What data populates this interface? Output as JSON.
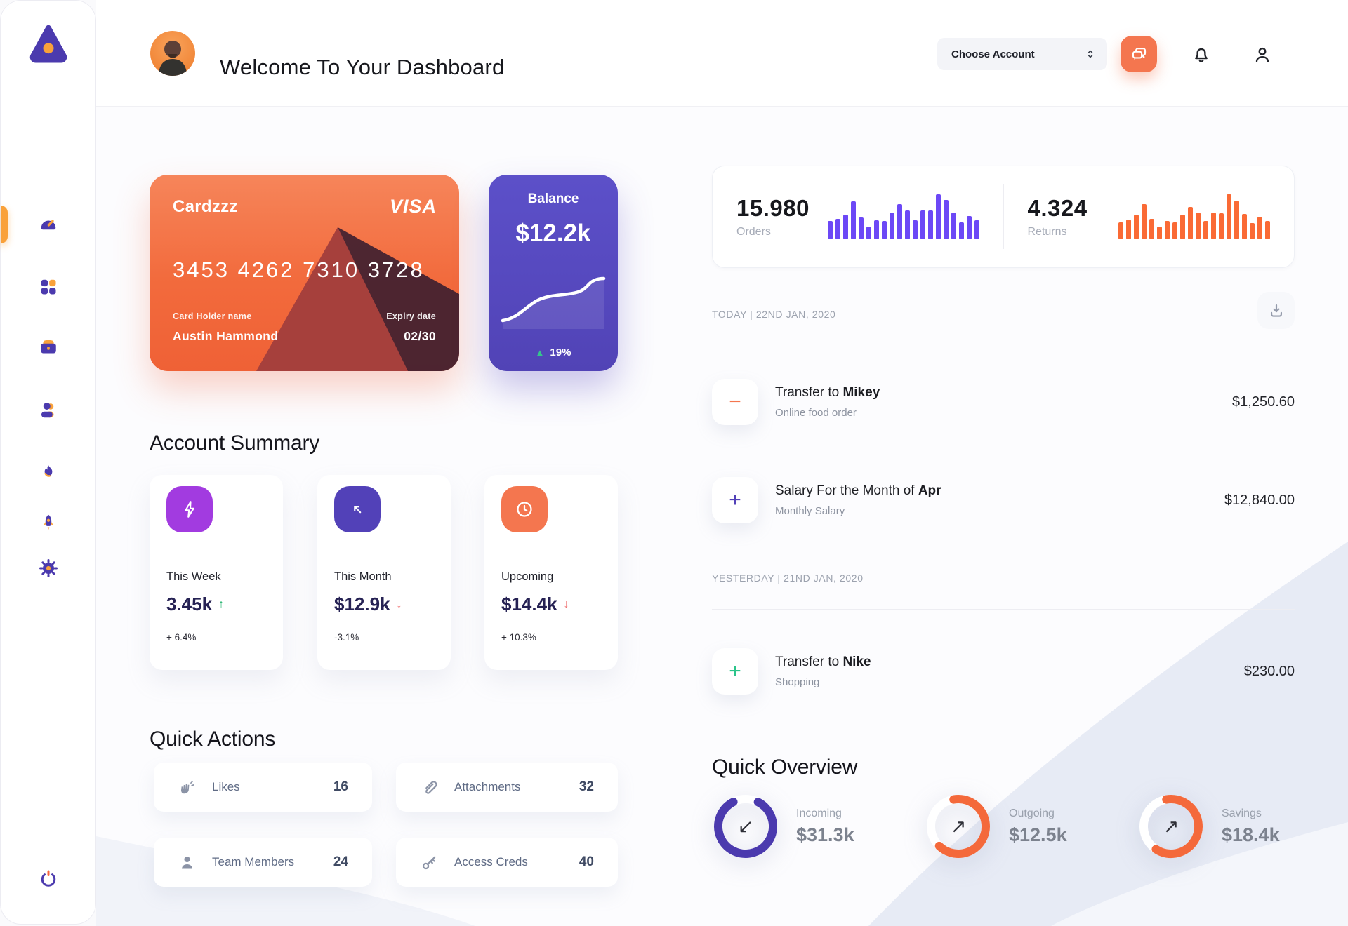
{
  "sidebar": {
    "active_item": "dashboard",
    "items": [
      "dashboard",
      "apps",
      "portfolio",
      "contacts",
      "activity",
      "launch",
      "settings"
    ]
  },
  "header": {
    "title": "Welcome To Your Dashboard",
    "account_select": {
      "label": "Choose Account"
    }
  },
  "wallet_card": {
    "name": "Cardzzz",
    "brand": "VISA",
    "number": "3453 4262 7310 3728",
    "holder_label": "Card Holder name",
    "holder_name": "Austin Hammond",
    "expiry_label": "Expiry date",
    "expiry": "02/30"
  },
  "balance_card": {
    "label": "Balance",
    "value": "$12.2k",
    "change_icon": "▲",
    "change": "19%",
    "change_color": "#35C48D"
  },
  "stats": {
    "orders": {
      "value": "15.980",
      "label": "Orders",
      "color": "#6C48F6",
      "values": [
        40,
        45,
        55,
        85,
        48,
        28,
        42,
        40,
        60,
        78,
        64,
        42,
        64,
        64,
        100,
        88,
        60,
        38,
        52,
        42
      ]
    },
    "returns": {
      "value": "4.324",
      "label": "Returns",
      "color": "#FA6A35",
      "values": [
        38,
        44,
        54,
        78,
        46,
        28,
        40,
        38,
        54,
        72,
        60,
        40,
        60,
        58,
        100,
        86,
        56,
        36,
        50,
        40
      ]
    }
  },
  "account_summary": {
    "title": "Account Summary",
    "cards": [
      {
        "icon": "lightning-icon",
        "icon_bg": "#A23BE0",
        "label": "This Week",
        "value": "3.45k",
        "trend_icon": "↑",
        "trend_color": "#2BB673",
        "change": "+ 6.4%"
      },
      {
        "icon": "arrow-up-left-icon",
        "icon_bg": "#5241B8",
        "label": "This Month",
        "value": "$12.9k",
        "trend_icon": "↓",
        "trend_color": "#F07373",
        "change": "-3.1%"
      },
      {
        "icon": "clock-icon",
        "icon_bg": "#F4764F",
        "label": "Upcoming",
        "value": "$14.4k",
        "trend_icon": "↓",
        "trend_color": "#F07373",
        "change": "+ 10.3%"
      }
    ]
  },
  "quick_actions": {
    "title": "Quick Actions",
    "items": [
      {
        "icon": "clap-icon",
        "label": "Likes",
        "count": "16"
      },
      {
        "icon": "paperclip-icon",
        "label": "Attachments",
        "count": "32"
      },
      {
        "icon": "member-icon",
        "label": "Team Members",
        "count": "24"
      },
      {
        "icon": "key-icon",
        "label": "Access Creds",
        "count": "40"
      }
    ]
  },
  "transactions": {
    "groups": [
      {
        "date": "TODAY | 22ND JAN, 2020",
        "rows": [
          {
            "sign": "−",
            "sign_color": "#F4764F",
            "title_prefix": "Transfer to ",
            "title_bold": "Mikey",
            "subtitle": "Online food order",
            "amount": "$1,250.60"
          },
          {
            "sign": "+",
            "sign_color": "#5241B8",
            "title_prefix": "Salary For the Month of ",
            "title_bold": "Apr",
            "subtitle": "Monthly Salary",
            "amount": "$12,840.00"
          }
        ]
      },
      {
        "date": "YESTERDAY | 21ND JAN, 2020",
        "rows": [
          {
            "sign": "+",
            "sign_color": "#2BC48A",
            "title_prefix": "Transfer to ",
            "title_bold": "Nike",
            "subtitle": "Shopping",
            "amount": "$230.00"
          }
        ]
      }
    ]
  },
  "quick_overview": {
    "title": "Quick Overview",
    "items": [
      {
        "label": "Incoming",
        "value": "$31.3k",
        "ring_color": "#4B3AAE",
        "percent": 85,
        "arrow": "↙"
      },
      {
        "label": "Outgoing",
        "value": "$12.5k",
        "ring_color": "#F4693B",
        "percent": 65,
        "arrow": "↗"
      },
      {
        "label": "Savings",
        "value": "$18.4k",
        "ring_color": "#F4693B",
        "percent": 62,
        "arrow": "↗"
      }
    ]
  }
}
